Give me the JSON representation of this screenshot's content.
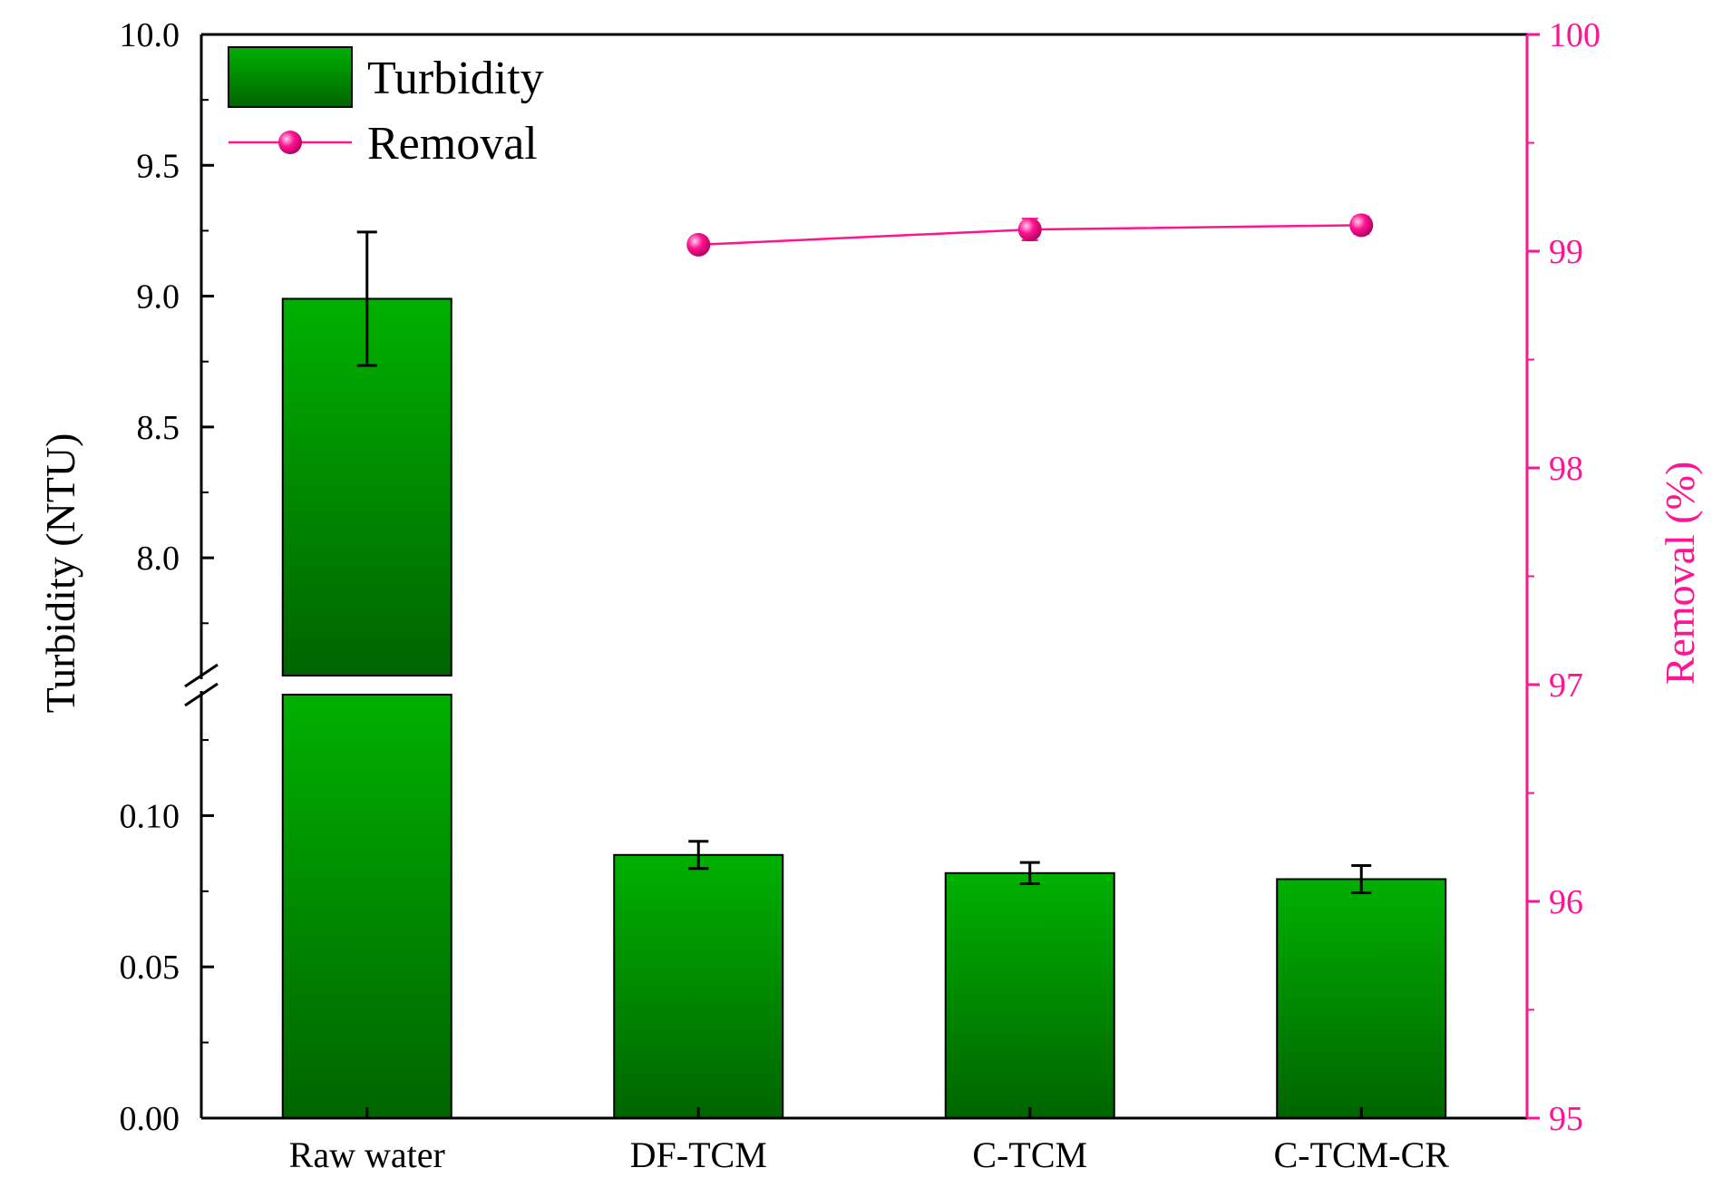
{
  "colors": {
    "bar_top": "#00b000",
    "bar_bottom": "#006400",
    "removal": "#ff1493",
    "axis": "#000000"
  },
  "chart_data": {
    "type": "bar",
    "categories": [
      "Raw water",
      "DF-TCM",
      "C-TCM",
      "C-TCM-CR"
    ],
    "series": [
      {
        "name": "Turbidity",
        "axis": "left",
        "values": [
          8.99,
          0.087,
          0.081,
          0.079
        ],
        "errors": [
          0.255,
          0.0045,
          0.0035,
          0.0045
        ]
      },
      {
        "name": "Removal",
        "axis": "right",
        "type": "line",
        "values": [
          null,
          99.03,
          99.1,
          99.12
        ],
        "errors": [
          null,
          0.03,
          0.05,
          0.04
        ]
      }
    ],
    "ylabel": "Turbidity (NTU)",
    "y2label": "Removal (%)",
    "y_axis_break": {
      "lower_range": [
        0,
        0.14
      ],
      "upper_range": [
        7.55,
        10.0
      ],
      "lower_ticks": [
        "0.00",
        "0.05",
        "0.10"
      ],
      "upper_ticks": [
        "8.0",
        "8.5",
        "9.0",
        "9.5",
        "10.0"
      ]
    },
    "y2lim": [
      95,
      100
    ],
    "y2_ticks": [
      "95",
      "96",
      "97",
      "98",
      "99",
      "100"
    ],
    "legend": {
      "position": "top-left",
      "entries": [
        "Turbidity",
        "Removal"
      ]
    },
    "grid": false
  }
}
